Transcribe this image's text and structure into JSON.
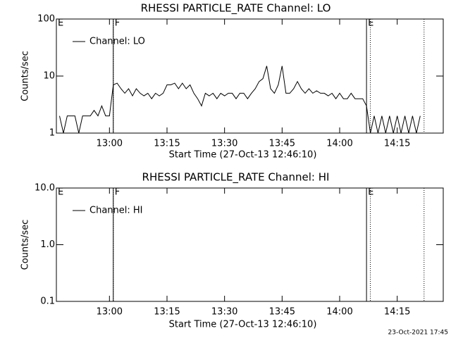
{
  "chart_data": [
    {
      "type": "line",
      "title": "RHESSI PARTICLE_RATE Channel: LO",
      "xlabel": "Start Time (27-Oct-13 12:46:10)",
      "ylabel": "Counts/sec",
      "log_y": true,
      "xlim": [
        "12:46:10",
        "14:27"
      ],
      "xticks": [
        "13:00",
        "13:15",
        "13:30",
        "13:45",
        "14:00",
        "14:15"
      ],
      "ylim": [
        1,
        100
      ],
      "yticks": [
        1,
        10,
        100
      ],
      "events": [
        {
          "label": "E",
          "x": "12:46:10"
        },
        {
          "label": "F",
          "x": "13:01"
        },
        {
          "label": "E",
          "x": "14:07"
        }
      ],
      "dotted_lines": [
        "13:01",
        "14:08",
        "14:22"
      ],
      "x": [
        "12:47",
        "12:48",
        "12:49",
        "12:50",
        "12:51",
        "12:52",
        "12:53",
        "12:54",
        "12:55",
        "12:56",
        "12:57",
        "12:58",
        "12:59",
        "13:00",
        "13:01",
        "13:02",
        "13:03",
        "13:04",
        "13:05",
        "13:06",
        "13:07",
        "13:08",
        "13:09",
        "13:10",
        "13:11",
        "13:12",
        "13:13",
        "13:14",
        "13:15",
        "13:16",
        "13:17",
        "13:18",
        "13:19",
        "13:20",
        "13:21",
        "13:22",
        "13:23",
        "13:24",
        "13:25",
        "13:26",
        "13:27",
        "13:28",
        "13:29",
        "13:30",
        "13:31",
        "13:32",
        "13:33",
        "13:34",
        "13:35",
        "13:36",
        "13:37",
        "13:38",
        "13:39",
        "13:40",
        "13:41",
        "13:42",
        "13:43",
        "13:44",
        "13:45",
        "13:46",
        "13:47",
        "13:48",
        "13:49",
        "13:50",
        "13:51",
        "13:52",
        "13:53",
        "13:54",
        "13:55",
        "13:56",
        "13:57",
        "13:58",
        "13:59",
        "14:00",
        "14:01",
        "14:02",
        "14:03",
        "14:04",
        "14:05",
        "14:06",
        "14:07",
        "14:08",
        "14:09",
        "14:10",
        "14:11",
        "14:12",
        "14:13",
        "14:14",
        "14:15",
        "14:16",
        "14:17",
        "14:18",
        "14:19",
        "14:20",
        "14:21"
      ],
      "series": [
        {
          "name": "Channel: LO",
          "color": "#000000",
          "values": [
            2,
            1,
            2,
            2,
            2,
            1,
            2,
            2,
            2,
            2.5,
            2,
            3,
            2,
            2,
            7,
            7.5,
            6,
            5,
            6,
            4.5,
            6,
            5,
            4.5,
            5,
            4,
            5,
            4.5,
            5,
            7,
            7,
            7.5,
            6,
            7.5,
            6,
            7,
            5,
            4,
            3,
            5,
            4.5,
            5,
            4,
            5,
            4.5,
            5,
            5,
            4,
            5,
            5,
            4,
            5,
            6,
            8,
            9,
            15,
            6,
            5,
            7,
            15,
            5,
            5,
            6,
            8,
            6,
            5,
            6,
            5,
            5.5,
            5,
            5,
            4.5,
            5,
            4,
            5,
            4,
            4,
            5,
            4,
            4,
            4,
            3,
            1,
            2,
            1,
            2,
            1,
            2,
            1,
            2,
            1,
            2,
            1,
            2,
            1,
            2
          ]
        }
      ]
    },
    {
      "type": "line",
      "title": "RHESSI PARTICLE_RATE Channel: HI",
      "xlabel": "Start Time (27-Oct-13 12:46:10)",
      "ylabel": "Counts/sec",
      "log_y": true,
      "xlim": [
        "12:46:10",
        "14:27"
      ],
      "xticks": [
        "13:00",
        "13:15",
        "13:30",
        "13:45",
        "14:00",
        "14:15"
      ],
      "ylim": [
        0.1,
        10
      ],
      "yticks": [
        {
          "value": 0.1,
          "label": "0.1"
        },
        {
          "value": 1,
          "label": "1.0"
        },
        {
          "value": 10,
          "label": "10.0"
        }
      ],
      "events": [
        {
          "label": "E",
          "x": "12:46:10"
        },
        {
          "label": "F",
          "x": "13:01"
        },
        {
          "label": "E",
          "x": "14:07"
        }
      ],
      "dotted_lines": [
        "13:01",
        "14:08",
        "14:22"
      ],
      "x": [],
      "series": [
        {
          "name": "Channel: HI",
          "color": "#000000",
          "values": []
        }
      ]
    }
  ],
  "footer": "23-Oct-2021 17:45"
}
